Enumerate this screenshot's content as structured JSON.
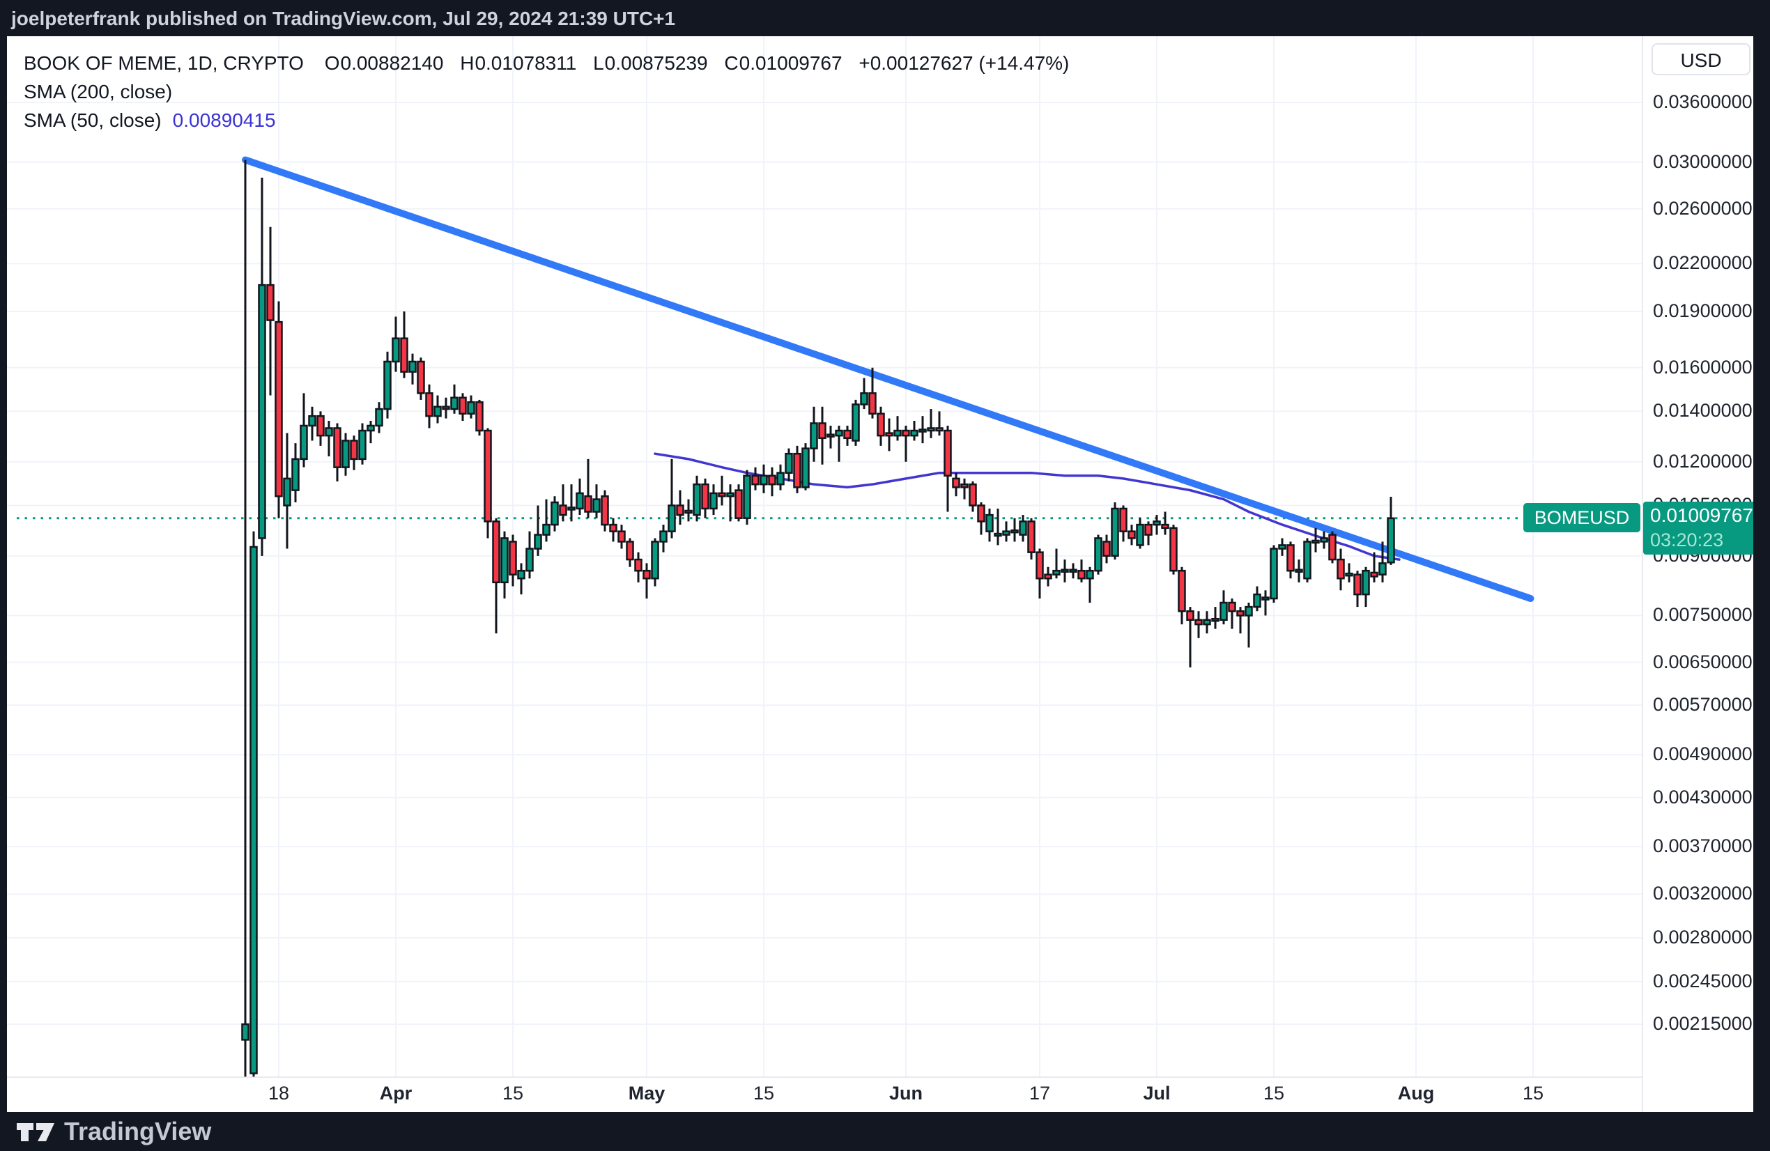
{
  "top_bar": {
    "text": "joelpeterfrank published on TradingView.com, Jul 29, 2024 21:39 UTC+1"
  },
  "legend": {
    "title": "BOOK OF MEME, 1D, CRYPTO",
    "o_label": "O",
    "o_value": "0.00882140",
    "h_label": "H",
    "h_value": "0.01078311",
    "l_label": "L",
    "l_value": "0.00875239",
    "c_label": "C",
    "c_value": "0.01009767",
    "change_text": "+0.00127627 (+14.47%)",
    "sma200_label": "SMA (200, close)",
    "sma50_label": "SMA (50, close)",
    "sma50_value": "0.00890415"
  },
  "currency_button": "USD",
  "price_marker": {
    "symbol": "BOMEUSD",
    "price": "0.01009767",
    "countdown": "03:20:23"
  },
  "watermark": {
    "brand": "TradingView"
  },
  "colors": {
    "up": "#089981",
    "down": "#F23645",
    "candle_border": "#11151C",
    "trendline": "#3179F6",
    "sma50": "#4236D0",
    "dotted_line": "#089981",
    "label_bg": "#089981",
    "grid": "#F0F3FA",
    "axis_border": "#E0E3EB",
    "panel_bg": "#FFFFFF",
    "frame_bg": "#131722"
  },
  "chart_data": {
    "type": "candlestick",
    "symbol": "BOMEUSD",
    "title": "BOOK OF MEME, 1D, CRYPTO",
    "interval": "1D",
    "exchange": "CRYPTO",
    "scale": "logarithmic",
    "start_date": "2024-03-14",
    "end_date": "2024-07-29",
    "last": {
      "open": 0.0088214,
      "high": 0.01078311,
      "low": 0.00875239,
      "close": 0.01009767,
      "change": 0.00127627,
      "change_pct": 14.47
    },
    "price_line": 0.01009767,
    "countdown": "03:20:23",
    "y_axis": {
      "ticks": [
        {
          "label": "0.03600000",
          "price": 0.036
        },
        {
          "label": "0.03000000",
          "price": 0.03
        },
        {
          "label": "0.02600000",
          "price": 0.026
        },
        {
          "label": "0.02200000",
          "price": 0.022
        },
        {
          "label": "0.01900000",
          "price": 0.019
        },
        {
          "label": "0.01600000",
          "price": 0.016
        },
        {
          "label": "0.01400000",
          "price": 0.014
        },
        {
          "label": "0.01200000",
          "price": 0.012
        },
        {
          "label": "0.01050000",
          "price": 0.0105
        },
        {
          "label": "0.00900000",
          "price": 0.009
        },
        {
          "label": "0.00750000",
          "price": 0.0075
        },
        {
          "label": "0.00650000",
          "price": 0.0065
        },
        {
          "label": "0.00570000",
          "price": 0.0057
        },
        {
          "label": "0.00490000",
          "price": 0.0049
        },
        {
          "label": "0.00430000",
          "price": 0.0043
        },
        {
          "label": "0.00370000",
          "price": 0.0037
        },
        {
          "label": "0.00320000",
          "price": 0.0032
        },
        {
          "label": "0.00280000",
          "price": 0.0028
        },
        {
          "label": "0.00245000",
          "price": 0.00245
        },
        {
          "label": "0.00215000",
          "price": 0.00215
        }
      ]
    },
    "x_axis": {
      "ticks": [
        {
          "label": "18",
          "day": 4,
          "major": false
        },
        {
          "label": "Apr",
          "day": 18,
          "major": true
        },
        {
          "label": "15",
          "day": 32,
          "major": false
        },
        {
          "label": "May",
          "day": 48,
          "major": true
        },
        {
          "label": "15",
          "day": 62,
          "major": false
        },
        {
          "label": "Jun",
          "day": 79,
          "major": true
        },
        {
          "label": "17",
          "day": 95,
          "major": false
        },
        {
          "label": "Jul",
          "day": 109,
          "major": true
        },
        {
          "label": "15",
          "day": 123,
          "major": false
        },
        {
          "label": "Aug",
          "day": 140,
          "major": true
        },
        {
          "label": "15",
          "day": 154,
          "major": false
        }
      ]
    },
    "candles": [
      [
        0.00205,
        0.0302,
        0.00183,
        0.00215
      ],
      [
        0.00185,
        0.0097,
        0.00183,
        0.00925
      ],
      [
        0.0095,
        0.0286,
        0.009,
        0.0206
      ],
      [
        0.0206,
        0.0246,
        0.0147,
        0.0185
      ],
      [
        0.0184,
        0.0196,
        0.0101,
        0.0108
      ],
      [
        0.0105,
        0.0131,
        0.0092,
        0.0114
      ],
      [
        0.011,
        0.0127,
        0.0106,
        0.0121
      ],
      [
        0.0121,
        0.0148,
        0.0118,
        0.0134
      ],
      [
        0.0134,
        0.0142,
        0.0128,
        0.0138
      ],
      [
        0.0138,
        0.014,
        0.0126,
        0.013
      ],
      [
        0.013,
        0.0136,
        0.0122,
        0.0133
      ],
      [
        0.0133,
        0.0135,
        0.0113,
        0.0118
      ],
      [
        0.0118,
        0.0131,
        0.0115,
        0.0128
      ],
      [
        0.0128,
        0.013,
        0.0117,
        0.0121
      ],
      [
        0.0121,
        0.0135,
        0.0119,
        0.0132
      ],
      [
        0.0132,
        0.0136,
        0.0127,
        0.0134
      ],
      [
        0.0134,
        0.0144,
        0.0131,
        0.0141
      ],
      [
        0.0141,
        0.0168,
        0.0137,
        0.0163
      ],
      [
        0.0163,
        0.0187,
        0.0158,
        0.0175
      ],
      [
        0.0175,
        0.019,
        0.0155,
        0.0158
      ],
      [
        0.0158,
        0.0167,
        0.0152,
        0.0163
      ],
      [
        0.0163,
        0.0165,
        0.0145,
        0.0148
      ],
      [
        0.0148,
        0.0152,
        0.0133,
        0.0138
      ],
      [
        0.0138,
        0.0147,
        0.0135,
        0.0142
      ],
      [
        0.0142,
        0.0146,
        0.0137,
        0.0141
      ],
      [
        0.0141,
        0.0152,
        0.0139,
        0.0146
      ],
      [
        0.0146,
        0.0148,
        0.0136,
        0.0139
      ],
      [
        0.0139,
        0.0147,
        0.0137,
        0.0144
      ],
      [
        0.0144,
        0.0145,
        0.013,
        0.0132
      ],
      [
        0.0132,
        0.0133,
        0.0095,
        0.01
      ],
      [
        0.01,
        0.0101,
        0.0071,
        0.0083
      ],
      [
        0.0083,
        0.0097,
        0.0079,
        0.0095
      ],
      [
        0.0094,
        0.0096,
        0.0082,
        0.0085
      ],
      [
        0.0084,
        0.0088,
        0.008,
        0.0086
      ],
      [
        0.0086,
        0.0097,
        0.0084,
        0.0092
      ],
      [
        0.0092,
        0.0105,
        0.009,
        0.0096
      ],
      [
        0.0096,
        0.0107,
        0.0094,
        0.0099
      ],
      [
        0.0099,
        0.0108,
        0.0097,
        0.0106
      ],
      [
        0.0105,
        0.0112,
        0.01,
        0.0102
      ],
      [
        0.0104,
        0.0112,
        0.01,
        0.0104
      ],
      [
        0.0104,
        0.0114,
        0.0102,
        0.0109
      ],
      [
        0.0108,
        0.0121,
        0.0101,
        0.0103
      ],
      [
        0.0103,
        0.0112,
        0.0101,
        0.0107
      ],
      [
        0.0108,
        0.011,
        0.0097,
        0.0099
      ],
      [
        0.0099,
        0.0101,
        0.0094,
        0.0097
      ],
      [
        0.0097,
        0.0099,
        0.0092,
        0.0094
      ],
      [
        0.0094,
        0.0095,
        0.0087,
        0.0089
      ],
      [
        0.0089,
        0.0091,
        0.0083,
        0.0086
      ],
      [
        0.0086,
        0.0088,
        0.0079,
        0.0084
      ],
      [
        0.0084,
        0.0095,
        0.0082,
        0.0094
      ],
      [
        0.0094,
        0.0099,
        0.0091,
        0.0097
      ],
      [
        0.0097,
        0.0121,
        0.0095,
        0.0105
      ],
      [
        0.0105,
        0.011,
        0.0099,
        0.0102
      ],
      [
        0.0103,
        0.0107,
        0.01,
        0.0103
      ],
      [
        0.0102,
        0.0115,
        0.01,
        0.0112
      ],
      [
        0.0112,
        0.0114,
        0.0101,
        0.0104
      ],
      [
        0.0104,
        0.0112,
        0.0102,
        0.0109
      ],
      [
        0.0109,
        0.0115,
        0.0105,
        0.0108
      ],
      [
        0.0108,
        0.0112,
        0.01,
        0.0109
      ],
      [
        0.011,
        0.0112,
        0.01,
        0.0101
      ],
      [
        0.0101,
        0.0117,
        0.0099,
        0.0115
      ],
      [
        0.0115,
        0.0118,
        0.011,
        0.0112
      ],
      [
        0.0112,
        0.0119,
        0.0109,
        0.0115
      ],
      [
        0.0115,
        0.0118,
        0.0108,
        0.0112
      ],
      [
        0.0112,
        0.0119,
        0.011,
        0.0116
      ],
      [
        0.0116,
        0.0125,
        0.0113,
        0.0123
      ],
      [
        0.0123,
        0.0126,
        0.0109,
        0.0111
      ],
      [
        0.0111,
        0.0127,
        0.011,
        0.0125
      ],
      [
        0.0125,
        0.0142,
        0.012,
        0.0135
      ],
      [
        0.0135,
        0.0142,
        0.0119,
        0.0129
      ],
      [
        0.013,
        0.0134,
        0.0125,
        0.013
      ],
      [
        0.013,
        0.0134,
        0.012,
        0.0132
      ],
      [
        0.0132,
        0.0134,
        0.0126,
        0.0129
      ],
      [
        0.0128,
        0.0145,
        0.0126,
        0.0143
      ],
      [
        0.0143,
        0.0155,
        0.0141,
        0.0148
      ],
      [
        0.0148,
        0.016,
        0.0137,
        0.0139
      ],
      [
        0.0139,
        0.0142,
        0.0126,
        0.013
      ],
      [
        0.0131,
        0.0137,
        0.0124,
        0.013
      ],
      [
        0.013,
        0.0138,
        0.0128,
        0.0132
      ],
      [
        0.0132,
        0.0134,
        0.012,
        0.013
      ],
      [
        0.013,
        0.0136,
        0.0128,
        0.0132
      ],
      [
        0.0132,
        0.0138,
        0.0127,
        0.0132
      ],
      [
        0.0132,
        0.0141,
        0.0129,
        0.0133
      ],
      [
        0.0133,
        0.014,
        0.013,
        0.0132
      ],
      [
        0.0132,
        0.0134,
        0.0103,
        0.0115
      ],
      [
        0.0114,
        0.0116,
        0.0108,
        0.0111
      ],
      [
        0.0112,
        0.0114,
        0.0107,
        0.0111
      ],
      [
        0.0112,
        0.0113,
        0.0103,
        0.0105
      ],
      [
        0.0105,
        0.0106,
        0.0096,
        0.01
      ],
      [
        0.0097,
        0.0104,
        0.0094,
        0.0102
      ],
      [
        0.0096,
        0.0104,
        0.0093,
        0.0096
      ],
      [
        0.0096,
        0.01,
        0.0094,
        0.0097
      ],
      [
        0.0097,
        0.0101,
        0.0094,
        0.0097
      ],
      [
        0.0096,
        0.0102,
        0.0094,
        0.01
      ],
      [
        0.01,
        0.0101,
        0.0089,
        0.0091
      ],
      [
        0.0091,
        0.0092,
        0.0079,
        0.0084
      ],
      [
        0.0085,
        0.0087,
        0.0082,
        0.0084
      ],
      [
        0.0085,
        0.0092,
        0.0084,
        0.0086
      ],
      [
        0.0086,
        0.0089,
        0.0083,
        0.0086
      ],
      [
        0.0086,
        0.0088,
        0.0084,
        0.0086
      ],
      [
        0.0086,
        0.0089,
        0.0083,
        0.0084
      ],
      [
        0.0084,
        0.0087,
        0.0078,
        0.0086
      ],
      [
        0.0086,
        0.0096,
        0.0085,
        0.0095
      ],
      [
        0.0094,
        0.0096,
        0.0088,
        0.009
      ],
      [
        0.009,
        0.0106,
        0.0089,
        0.0104
      ],
      [
        0.0104,
        0.0105,
        0.0094,
        0.0097
      ],
      [
        0.0097,
        0.0099,
        0.0093,
        0.0095
      ],
      [
        0.0093,
        0.0101,
        0.0092,
        0.0099
      ],
      [
        0.0099,
        0.01,
        0.0093,
        0.0096
      ],
      [
        0.0099,
        0.0102,
        0.0096,
        0.01
      ],
      [
        0.0099,
        0.0103,
        0.0096,
        0.0098
      ],
      [
        0.0098,
        0.0099,
        0.0085,
        0.0086
      ],
      [
        0.0086,
        0.0087,
        0.0073,
        0.0076
      ],
      [
        0.0076,
        0.0077,
        0.0064,
        0.0074
      ],
      [
        0.0074,
        0.0076,
        0.007,
        0.0073
      ],
      [
        0.0073,
        0.0076,
        0.0071,
        0.0074
      ],
      [
        0.0074,
        0.0077,
        0.0072,
        0.0074
      ],
      [
        0.0074,
        0.0081,
        0.0073,
        0.0078
      ],
      [
        0.0078,
        0.0079,
        0.0072,
        0.0076
      ],
      [
        0.0076,
        0.0077,
        0.0071,
        0.0075
      ],
      [
        0.0075,
        0.0078,
        0.0068,
        0.0077
      ],
      [
        0.0077,
        0.0082,
        0.0076,
        0.008
      ],
      [
        0.0079,
        0.0081,
        0.0075,
        0.0079
      ],
      [
        0.0079,
        0.0093,
        0.0078,
        0.0092
      ],
      [
        0.0092,
        0.0095,
        0.009,
        0.0093
      ],
      [
        0.0093,
        0.0094,
        0.0084,
        0.0086
      ],
      [
        0.0086,
        0.0089,
        0.0083,
        0.0086
      ],
      [
        0.0084,
        0.0095,
        0.0083,
        0.0094
      ],
      [
        0.0094,
        0.0098,
        0.0091,
        0.0094
      ],
      [
        0.0094,
        0.0097,
        0.0092,
        0.0095
      ],
      [
        0.0096,
        0.0097,
        0.0088,
        0.0089
      ],
      [
        0.0089,
        0.0092,
        0.0081,
        0.0084
      ],
      [
        0.0085,
        0.0088,
        0.0083,
        0.0085
      ],
      [
        0.0085,
        0.0086,
        0.0077,
        0.008
      ],
      [
        0.008,
        0.0087,
        0.0077,
        0.0086
      ],
      [
        0.00855,
        0.0091,
        0.0083,
        0.00845
      ],
      [
        0.0085,
        0.0094,
        0.0083,
        0.0088
      ],
      [
        0.0088214,
        0.0107831,
        0.0087524,
        0.0100977
      ]
    ],
    "sma50": {
      "period": 50,
      "points": [
        [
          49,
          0.0123
        ],
        [
          53,
          0.0121
        ],
        [
          57,
          0.0118
        ],
        [
          60,
          0.0116
        ],
        [
          64,
          0.0114
        ],
        [
          68,
          0.0112
        ],
        [
          72,
          0.0111
        ],
        [
          75,
          0.0112
        ],
        [
          79,
          0.0114
        ],
        [
          83,
          0.0116
        ],
        [
          87,
          0.0116
        ],
        [
          90,
          0.0116
        ],
        [
          94,
          0.0116
        ],
        [
          98,
          0.0115
        ],
        [
          102,
          0.0115
        ],
        [
          105,
          0.0114
        ],
        [
          109,
          0.0112
        ],
        [
          113,
          0.011
        ],
        [
          117,
          0.0107
        ],
        [
          120,
          0.0103
        ],
        [
          124,
          0.0099
        ],
        [
          128,
          0.00957
        ],
        [
          132,
          0.00927
        ],
        [
          135,
          0.009
        ],
        [
          138,
          0.0089
        ]
      ]
    },
    "trendline": {
      "from_day": 0,
      "from_price": 0.0302,
      "to_day": 153.7,
      "to_price": 0.0079
    }
  }
}
